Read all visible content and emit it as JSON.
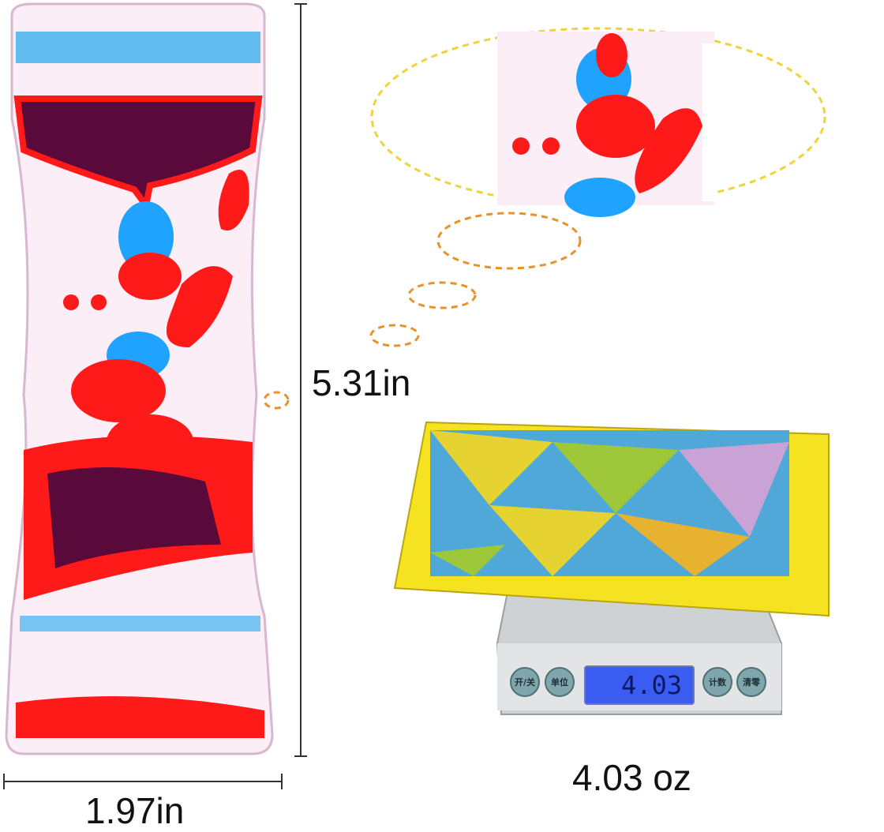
{
  "dimensions": {
    "height": "5.31in",
    "width": "1.97in",
    "weight": "4.03 oz"
  },
  "scale": {
    "display": "4.03",
    "buttons": [
      "开/关",
      "单位",
      "计数",
      "清零"
    ]
  },
  "colors": {
    "liquid_red": "#ff1a1a",
    "liquid_blue": "#1fa3ff",
    "dark_purple": "#5a0a3a",
    "bubble_dash_orange": "#e8922a",
    "bubble_dash_yellow": "#f2d23a",
    "box_yellow": "#f5e322"
  }
}
